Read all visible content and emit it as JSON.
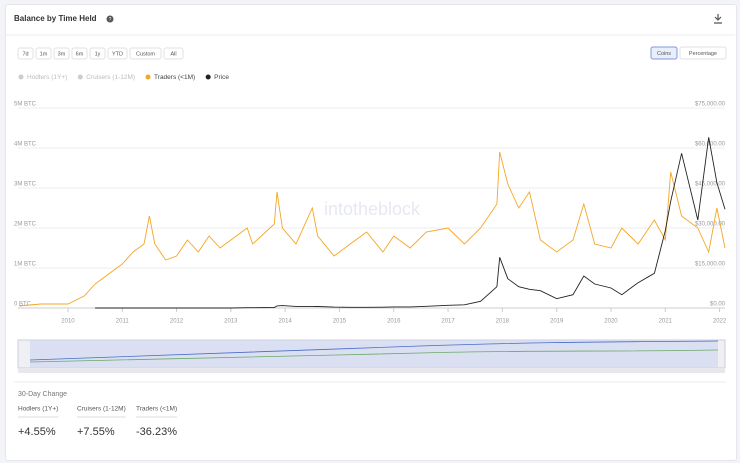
{
  "header": {
    "title": "Balance by Time Held"
  },
  "controls": {
    "ranges": [
      "7d",
      "1m",
      "3m",
      "6m",
      "1y",
      "YTD",
      "Custom",
      "All"
    ],
    "modes": [
      "Coins",
      "Percentage"
    ],
    "active_mode": "Coins"
  },
  "chart_data": {
    "type": "line",
    "watermark": "intotheblock",
    "x": [
      2009.1,
      2009.5,
      2010.0,
      2010.3,
      2010.5,
      2010.8,
      2011.0,
      2011.2,
      2011.4,
      2011.5,
      2011.6,
      2011.8,
      2012.0,
      2012.2,
      2012.4,
      2012.6,
      2012.8,
      2013.0,
      2013.3,
      2013.4,
      2013.8,
      2013.85,
      2013.95,
      2014.2,
      2014.5,
      2014.6,
      2014.9,
      2015.2,
      2015.5,
      2015.8,
      2016.0,
      2016.3,
      2016.6,
      2017.0,
      2017.3,
      2017.6,
      2017.9,
      2017.95,
      2018.1,
      2018.3,
      2018.5,
      2018.7,
      2019.0,
      2019.3,
      2019.5,
      2019.7,
      2020.0,
      2020.2,
      2020.5,
      2020.8,
      2021.0,
      2021.1,
      2021.3,
      2021.6,
      2021.8,
      2021.95,
      2022.1
    ],
    "series": [
      {
        "name": "Hodlers (1Y+)",
        "color": "#cccccc",
        "visible": false
      },
      {
        "name": "Cruisers (1-12M)",
        "color": "#cccccc",
        "visible": false
      },
      {
        "name": "Traders (<1M)",
        "color": "#f5a623",
        "visible": true,
        "values": [
          50000,
          100000,
          100000,
          300000,
          600000,
          900000,
          1100000,
          1400000,
          1600000,
          2300000,
          1600000,
          1200000,
          1300000,
          1700000,
          1400000,
          1800000,
          1500000,
          1700000,
          2000000,
          1600000,
          2100000,
          2900000,
          2000000,
          1600000,
          2500000,
          1800000,
          1300000,
          1600000,
          1900000,
          1400000,
          1800000,
          1500000,
          1900000,
          2000000,
          1600000,
          2000000,
          2600000,
          3900000,
          3100000,
          2500000,
          2900000,
          1700000,
          1400000,
          1700000,
          2600000,
          1600000,
          1500000,
          2000000,
          1600000,
          2200000,
          1700000,
          3400000,
          2300000,
          2000000,
          1400000,
          2500000,
          1500000
        ]
      },
      {
        "name": "Price",
        "color": "#222222",
        "visible": true,
        "axis": "y2",
        "values": [
          null,
          null,
          null,
          null,
          0,
          0,
          0,
          10,
          15,
          15,
          10,
          5,
          5,
          5,
          6,
          10,
          12,
          15,
          100,
          120,
          200,
          800,
          900,
          600,
          600,
          550,
          350,
          250,
          250,
          300,
          400,
          420,
          650,
          1000,
          1200,
          2500,
          8000,
          19000,
          11000,
          8000,
          7000,
          6500,
          3500,
          5000,
          12000,
          9000,
          7500,
          5000,
          9500,
          13000,
          29000,
          40000,
          58000,
          33000,
          64000,
          47000,
          37000
        ]
      }
    ],
    "xlim": [
      2009.08,
      2022.1
    ],
    "xticks": [
      2010,
      2011,
      2012,
      2013,
      2014,
      2015,
      2016,
      2017,
      2018,
      2019,
      2020,
      2021,
      2022
    ],
    "ylim": [
      0,
      5000000
    ],
    "yticks": [
      {
        "value": 0,
        "label": "0 BTC"
      },
      {
        "value": 1000000,
        "label": "1M BTC"
      },
      {
        "value": 2000000,
        "label": "2M BTC"
      },
      {
        "value": 3000000,
        "label": "3M BTC"
      },
      {
        "value": 4000000,
        "label": "4M BTC"
      },
      {
        "value": 5000000,
        "label": "5M BTC"
      }
    ],
    "y2lim": [
      0,
      75000
    ],
    "y2ticks": [
      {
        "value": 0,
        "label": "$0.00"
      },
      {
        "value": 15000,
        "label": "$15,000.00"
      },
      {
        "value": 30000,
        "label": "$30,000.00"
      },
      {
        "value": 45000,
        "label": "$45,000.00"
      },
      {
        "value": 60000,
        "label": "$60,000.00"
      },
      {
        "value": 75000,
        "label": "$75,000.00"
      }
    ],
    "grid": true
  },
  "stats": {
    "title": "30-Day Change",
    "items": [
      {
        "label": "Hodlers (1Y+)",
        "value": "+4.55%"
      },
      {
        "label": "Cruisers (1-12M)",
        "value": "+7.55%"
      },
      {
        "label": "Traders (<1M)",
        "value": "-36.23%"
      }
    ]
  }
}
